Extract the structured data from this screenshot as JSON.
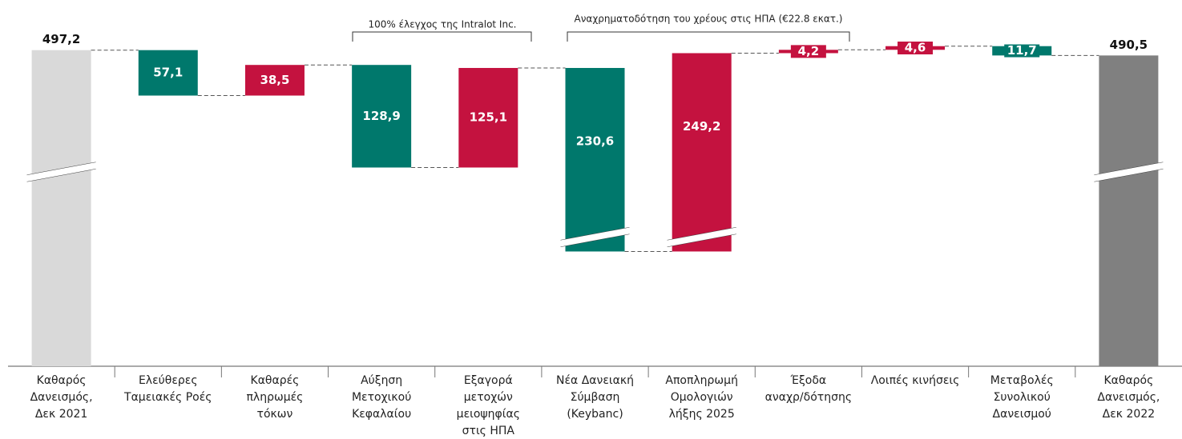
{
  "chart_data": {
    "type": "waterfall",
    "categories": [
      [
        "Καθαρός",
        "Δανεισμός,",
        "Δεκ 2021"
      ],
      [
        "Ελεύθερες",
        "Ταμειακές Ροές"
      ],
      [
        "Καθαρές",
        "πληρωμές",
        "τόκων"
      ],
      [
        "Αύξηση",
        "Μετοχικού",
        "Κεφαλαίου"
      ],
      [
        "Εξαγορά",
        "μετοχών",
        "μειοψηφίας",
        "στις ΗΠΑ"
      ],
      [
        "Νέα Δανειακή",
        "Σύμβαση",
        "(Keybanc)"
      ],
      [
        "Αποπληρωμή",
        "Ομολογιών",
        "λήξης 2025"
      ],
      [
        "Έξοδα",
        "αναχρ/δότησης"
      ],
      [
        "Λοιπές κινήσεις"
      ],
      [
        "Μεταβολές",
        "Συνολικού",
        "Δανεισμού"
      ],
      [
        "Καθαρός",
        "Δανεισμός,",
        "Δεκ 2022"
      ]
    ],
    "values": [
      497.2,
      -57.1,
      38.5,
      -128.9,
      125.1,
      -230.6,
      249.2,
      4.2,
      4.6,
      -11.7,
      490.5
    ],
    "value_labels": [
      "497,2",
      "57,1",
      "38,5",
      "128,9",
      "125,1",
      "230,6",
      "249,2",
      "4,2",
      "4,6",
      "11,7",
      "490,5"
    ],
    "colors": [
      "#d9d9d9",
      "#00786c",
      "#c4123f",
      "#00786c",
      "#c4123f",
      "#00786c",
      "#c4123f",
      "#c4123f",
      "#c4123f",
      "#00786c",
      "#808080"
    ],
    "annotations": [
      "100% έλεγχος της Intralot Inc.",
      "Αναχρηματοδότηση του χρέους στις ΗΠΑ  (€22.8 εκατ.)"
    ],
    "ylim": [
      100,
      520
    ]
  }
}
